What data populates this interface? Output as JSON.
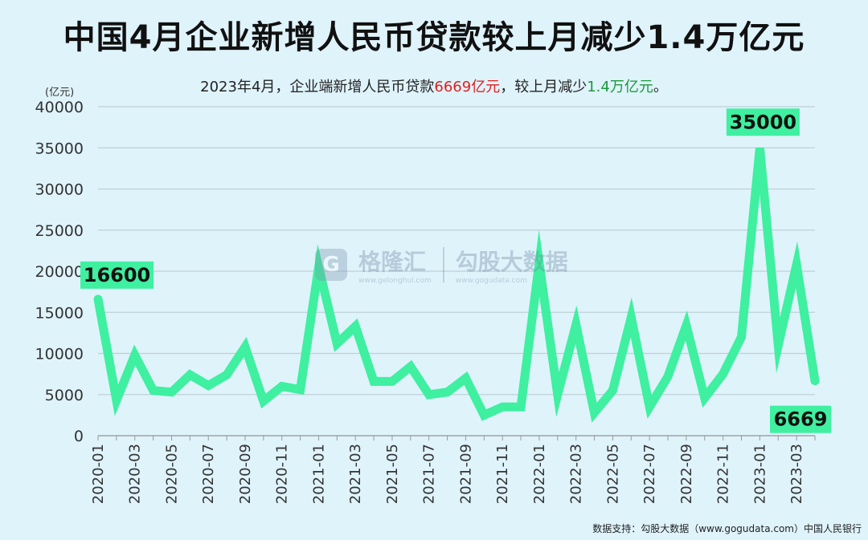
{
  "title": "中国4月企业新增人民币贷款较上月减少1.4万亿元",
  "subtitle": {
    "prefix": "2023年4月，企业端新增人民币贷款",
    "highlight_red": "6669亿元",
    "middle": "，较上月减少",
    "highlight_green": "1.4万亿元",
    "suffix": "。"
  },
  "unit_label": "(亿元)",
  "source": "数据支持：勾股大数据（www.gogudata.com）中国人民银行",
  "watermark": {
    "logo_char": "G",
    "name1": "格隆汇",
    "url1": "www.gelonghui.com",
    "name2": "勾股大数据",
    "url2": "www.gogudata.com"
  },
  "colors": {
    "line": "#3ef0a0",
    "label_bg": "#3ef0a0",
    "red": "#e0201e",
    "green": "#1a9a3a",
    "grid": "#bfcfd8",
    "background": "#dff3fb"
  },
  "chart_data": {
    "type": "line",
    "ylabel": "(亿元)",
    "ylim": [
      0,
      40000
    ],
    "yticks": [
      0,
      5000,
      10000,
      15000,
      20000,
      25000,
      30000,
      35000,
      40000
    ],
    "grid": true,
    "x": [
      "2020-01",
      "2020-02",
      "2020-03",
      "2020-04",
      "2020-05",
      "2020-06",
      "2020-07",
      "2020-08",
      "2020-09",
      "2020-10",
      "2020-11",
      "2020-12",
      "2021-01",
      "2021-02",
      "2021-03",
      "2021-04",
      "2021-05",
      "2021-06",
      "2021-07",
      "2021-08",
      "2021-09",
      "2021-10",
      "2021-11",
      "2021-12",
      "2022-01",
      "2022-02",
      "2022-03",
      "2022-04",
      "2022-05",
      "2022-06",
      "2022-07",
      "2022-08",
      "2022-09",
      "2022-10",
      "2022-11",
      "2022-12",
      "2023-01",
      "2023-02",
      "2023-03",
      "2023-04"
    ],
    "xtick_labels": [
      "2020-01",
      "2020-03",
      "2020-05",
      "2020-07",
      "2020-09",
      "2020-11",
      "2021-01",
      "2021-03",
      "2021-05",
      "2021-07",
      "2021-09",
      "2021-11",
      "2022-01",
      "2022-03",
      "2022-05",
      "2022-07",
      "2022-09",
      "2022-11",
      "2023-01",
      "2023-03"
    ],
    "series": [
      {
        "values": [
          16600,
          4300,
          9800,
          5500,
          5300,
          7400,
          6100,
          7400,
          10800,
          4200,
          6000,
          5600,
          20500,
          11200,
          13300,
          6600,
          6600,
          8400,
          5000,
          5300,
          7000,
          2500,
          3500,
          3500,
          21000,
          5000,
          13500,
          2800,
          5500,
          14400,
          3500,
          7200,
          13400,
          4600,
          7500,
          12000,
          35000,
          11000,
          20800,
          6669
        ]
      }
    ],
    "annotations": [
      {
        "x": "2020-01",
        "value": 16600,
        "text": "16600"
      },
      {
        "x": "2023-01",
        "value": 35000,
        "text": "35000"
      },
      {
        "x": "2023-04",
        "value": 6669,
        "text": "6669"
      }
    ]
  }
}
